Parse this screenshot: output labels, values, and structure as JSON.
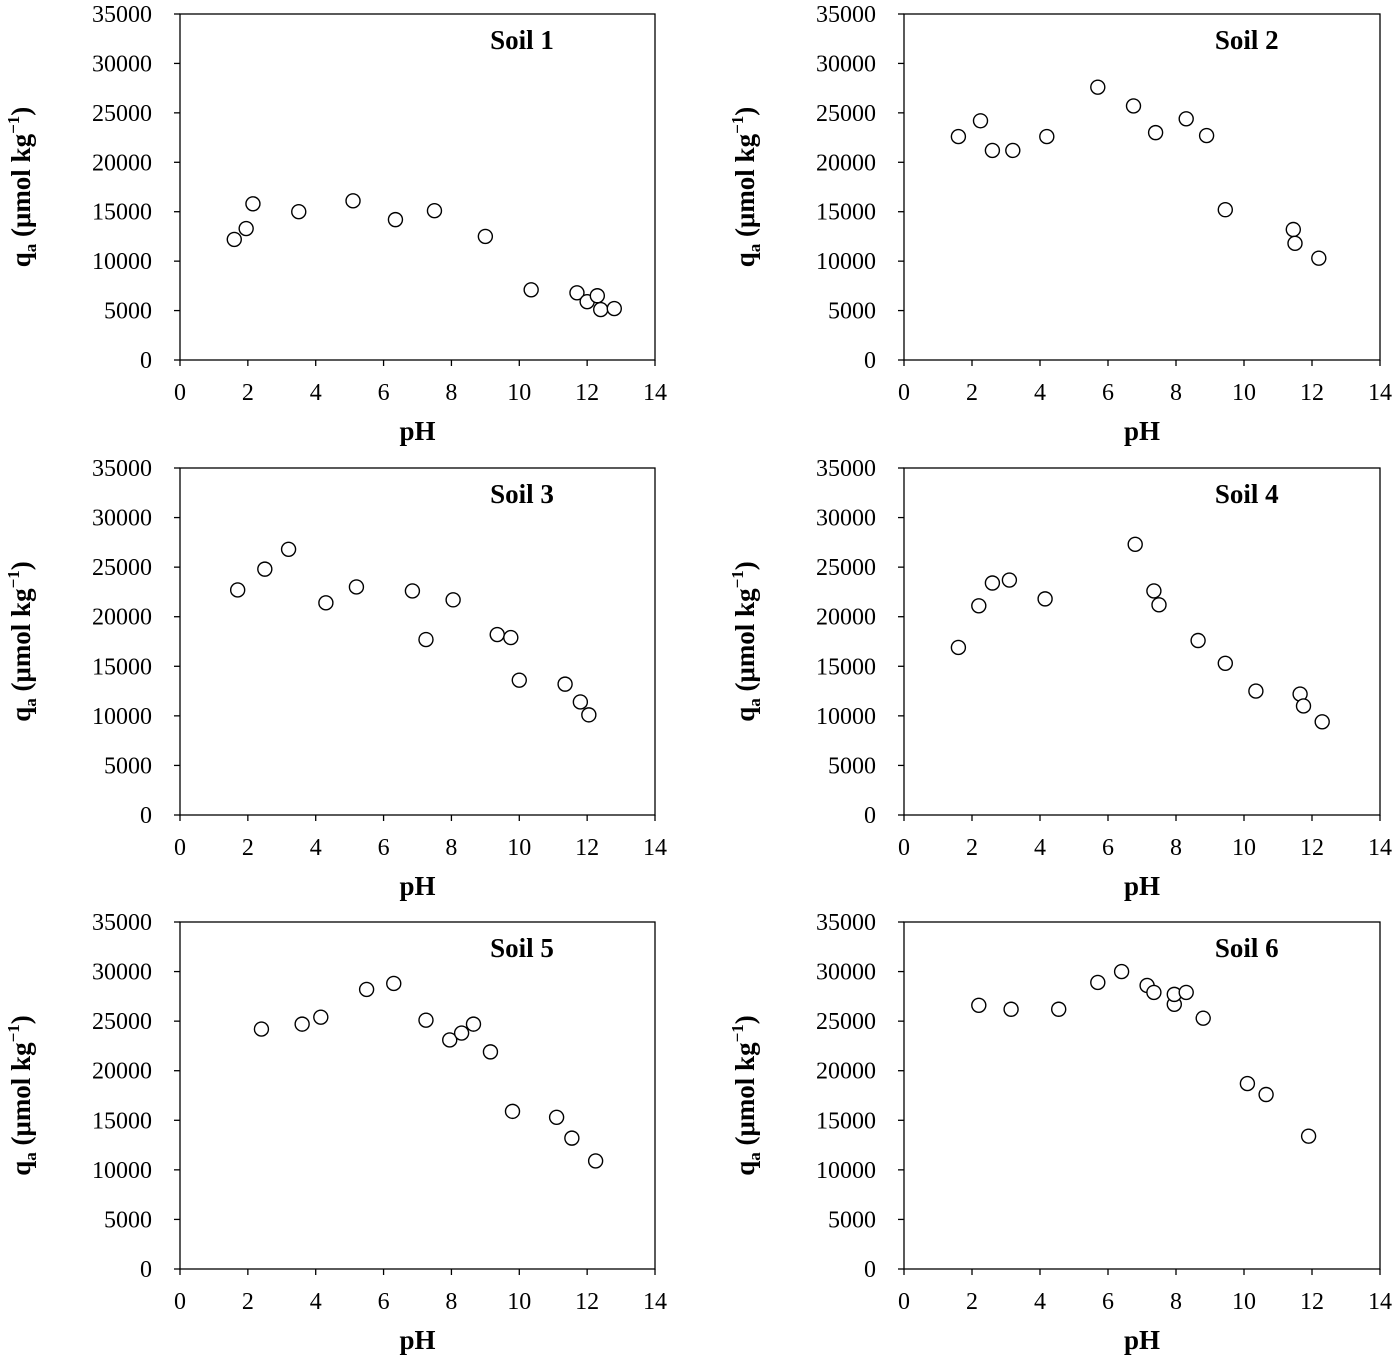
{
  "chart_data": [
    {
      "type": "scatter",
      "title": "Soil 1",
      "xlabel": "pH",
      "ylabel_main": "q",
      "ylabel_sub": "a",
      "ylabel_tail": " (μmol kg",
      "ylabel_exp": "−1",
      "ylabel_close": ")",
      "xlim": [
        0,
        14
      ],
      "ylim": [
        0,
        35000
      ],
      "x_ticks": [
        "0",
        "2",
        "4",
        "6",
        "8",
        "10",
        "12",
        "14"
      ],
      "y_ticks": [
        "0",
        "5000",
        "10000",
        "15000",
        "20000",
        "25000",
        "30000",
        "35000"
      ],
      "grid": false,
      "points": [
        [
          1.6,
          12200
        ],
        [
          1.95,
          13300
        ],
        [
          2.15,
          15800
        ],
        [
          3.5,
          15000
        ],
        [
          5.1,
          16100
        ],
        [
          6.35,
          14200
        ],
        [
          7.5,
          15100
        ],
        [
          9.0,
          12500
        ],
        [
          10.35,
          7100
        ],
        [
          11.7,
          6800
        ],
        [
          12.0,
          5900
        ],
        [
          12.3,
          6500
        ],
        [
          12.4,
          5100
        ],
        [
          12.8,
          5200
        ]
      ]
    },
    {
      "type": "scatter",
      "title": "Soil 2",
      "xlabel": "pH",
      "ylabel_main": "q",
      "ylabel_sub": "a",
      "ylabel_tail": " (μmol kg",
      "ylabel_exp": "−1",
      "ylabel_close": ")",
      "xlim": [
        0,
        14
      ],
      "ylim": [
        0,
        35000
      ],
      "x_ticks": [
        "0",
        "2",
        "4",
        "6",
        "8",
        "10",
        "12",
        "14"
      ],
      "y_ticks": [
        "0",
        "5000",
        "10000",
        "15000",
        "20000",
        "25000",
        "30000",
        "35000"
      ],
      "grid": false,
      "points": [
        [
          1.6,
          22600
        ],
        [
          2.25,
          24200
        ],
        [
          2.6,
          21200
        ],
        [
          3.2,
          21200
        ],
        [
          4.2,
          22600
        ],
        [
          5.7,
          27600
        ],
        [
          6.75,
          25700
        ],
        [
          7.4,
          23000
        ],
        [
          8.3,
          24400
        ],
        [
          8.9,
          22700
        ],
        [
          9.45,
          15200
        ],
        [
          11.45,
          13200
        ],
        [
          11.5,
          11800
        ],
        [
          12.2,
          10300
        ]
      ]
    },
    {
      "type": "scatter",
      "title": "Soil 3",
      "xlabel": "pH",
      "ylabel_main": "q",
      "ylabel_sub": "a",
      "ylabel_tail": " (μmol kg",
      "ylabel_exp": "−1",
      "ylabel_close": ")",
      "xlim": [
        0,
        14
      ],
      "ylim": [
        0,
        35000
      ],
      "x_ticks": [
        "0",
        "2",
        "4",
        "6",
        "8",
        "10",
        "12",
        "14"
      ],
      "y_ticks": [
        "0",
        "5000",
        "10000",
        "15000",
        "20000",
        "25000",
        "30000",
        "35000"
      ],
      "grid": false,
      "points": [
        [
          1.7,
          22700
        ],
        [
          2.5,
          24800
        ],
        [
          3.2,
          26800
        ],
        [
          4.3,
          21400
        ],
        [
          5.2,
          23000
        ],
        [
          6.85,
          22600
        ],
        [
          7.25,
          17700
        ],
        [
          8.05,
          21700
        ],
        [
          9.35,
          18200
        ],
        [
          9.75,
          17900
        ],
        [
          10.0,
          13600
        ],
        [
          11.35,
          13200
        ],
        [
          11.8,
          11400
        ],
        [
          12.05,
          10100
        ]
      ]
    },
    {
      "type": "scatter",
      "title": "Soil 4",
      "xlabel": "pH",
      "ylabel_main": "q",
      "ylabel_sub": "a",
      "ylabel_tail": " (μmol kg",
      "ylabel_exp": "−1",
      "ylabel_close": ")",
      "xlim": [
        0,
        14
      ],
      "ylim": [
        0,
        35000
      ],
      "x_ticks": [
        "0",
        "2",
        "4",
        "6",
        "8",
        "10",
        "12",
        "14"
      ],
      "y_ticks": [
        "0",
        "5000",
        "10000",
        "15000",
        "20000",
        "25000",
        "30000",
        "35000"
      ],
      "grid": false,
      "points": [
        [
          1.6,
          16900
        ],
        [
          2.2,
          21100
        ],
        [
          2.6,
          23400
        ],
        [
          3.1,
          23700
        ],
        [
          4.15,
          21800
        ],
        [
          6.8,
          27300
        ],
        [
          7.35,
          22600
        ],
        [
          7.5,
          21200
        ],
        [
          8.65,
          17600
        ],
        [
          9.45,
          15300
        ],
        [
          10.35,
          12500
        ],
        [
          11.65,
          12200
        ],
        [
          11.75,
          11000
        ],
        [
          12.3,
          9400
        ]
      ]
    },
    {
      "type": "scatter",
      "title": "Soil 5",
      "xlabel": "pH",
      "ylabel_main": "q",
      "ylabel_sub": "a",
      "ylabel_tail": " (μmol kg",
      "ylabel_exp": "−1",
      "ylabel_close": ")",
      "xlim": [
        0,
        14
      ],
      "ylim": [
        0,
        35000
      ],
      "x_ticks": [
        "0",
        "2",
        "4",
        "6",
        "8",
        "10",
        "12",
        "14"
      ],
      "y_ticks": [
        "0",
        "5000",
        "10000",
        "15000",
        "20000",
        "25000",
        "30000",
        "35000"
      ],
      "grid": false,
      "points": [
        [
          2.4,
          24200
        ],
        [
          3.6,
          24700
        ],
        [
          4.15,
          25400
        ],
        [
          5.5,
          28200
        ],
        [
          6.3,
          28800
        ],
        [
          7.25,
          25100
        ],
        [
          7.95,
          23100
        ],
        [
          8.3,
          23800
        ],
        [
          8.65,
          24700
        ],
        [
          9.15,
          21900
        ],
        [
          9.8,
          15900
        ],
        [
          11.1,
          15300
        ],
        [
          11.55,
          13200
        ],
        [
          12.25,
          10900
        ]
      ]
    },
    {
      "type": "scatter",
      "title": "Soil 6",
      "xlabel": "pH",
      "ylabel_main": "q",
      "ylabel_sub": "a",
      "ylabel_tail": " (μmol kg",
      "ylabel_exp": "−1",
      "ylabel_close": ")",
      "xlim": [
        0,
        14
      ],
      "ylim": [
        0,
        35000
      ],
      "x_ticks": [
        "0",
        "2",
        "4",
        "6",
        "8",
        "10",
        "12",
        "14"
      ],
      "y_ticks": [
        "0",
        "5000",
        "10000",
        "15000",
        "20000",
        "25000",
        "30000",
        "35000"
      ],
      "grid": false,
      "points": [
        [
          2.2,
          26600
        ],
        [
          3.15,
          26200
        ],
        [
          4.55,
          26200
        ],
        [
          5.7,
          28900
        ],
        [
          6.4,
          30000
        ],
        [
          7.15,
          28600
        ],
        [
          7.35,
          27900
        ],
        [
          7.95,
          26700
        ],
        [
          7.95,
          27700
        ],
        [
          8.3,
          27900
        ],
        [
          8.8,
          25300
        ],
        [
          10.1,
          18700
        ],
        [
          10.65,
          17600
        ],
        [
          11.9,
          13400
        ]
      ]
    }
  ]
}
